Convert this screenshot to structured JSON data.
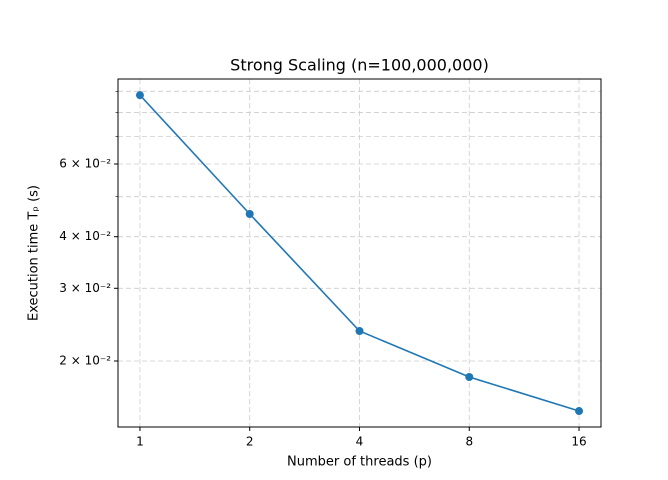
{
  "chart_data": {
    "type": "line",
    "title": "Strong Scaling (n=100,000,000)",
    "xlabel": "Number of threads (p)",
    "ylabel": "Execution time Tₚ (s)",
    "xscale": "log2",
    "yscale": "log",
    "grid": true,
    "x": [
      1,
      2,
      4,
      8,
      16
    ],
    "series": [
      {
        "name": "Tp",
        "color": "#1f77b4",
        "values": [
          0.0881,
          0.0454,
          0.02364,
          0.01829,
          0.01513
        ]
      }
    ],
    "xlim": [
      0.8706,
      18.38
    ],
    "ylim": [
      0.01384,
      0.0964
    ],
    "xticks": [
      1,
      2,
      4,
      8,
      16
    ],
    "yticks": [
      {
        "value": 0.02,
        "label": "2 × 10⁻²"
      },
      {
        "value": 0.03,
        "label": "3 × 10⁻²"
      },
      {
        "value": 0.04,
        "label": "4 × 10⁻²"
      },
      {
        "value": 0.06,
        "label": "6 × 10⁻²"
      }
    ],
    "yminor_ticks": [
      0.05,
      0.07,
      0.08,
      0.09
    ]
  }
}
